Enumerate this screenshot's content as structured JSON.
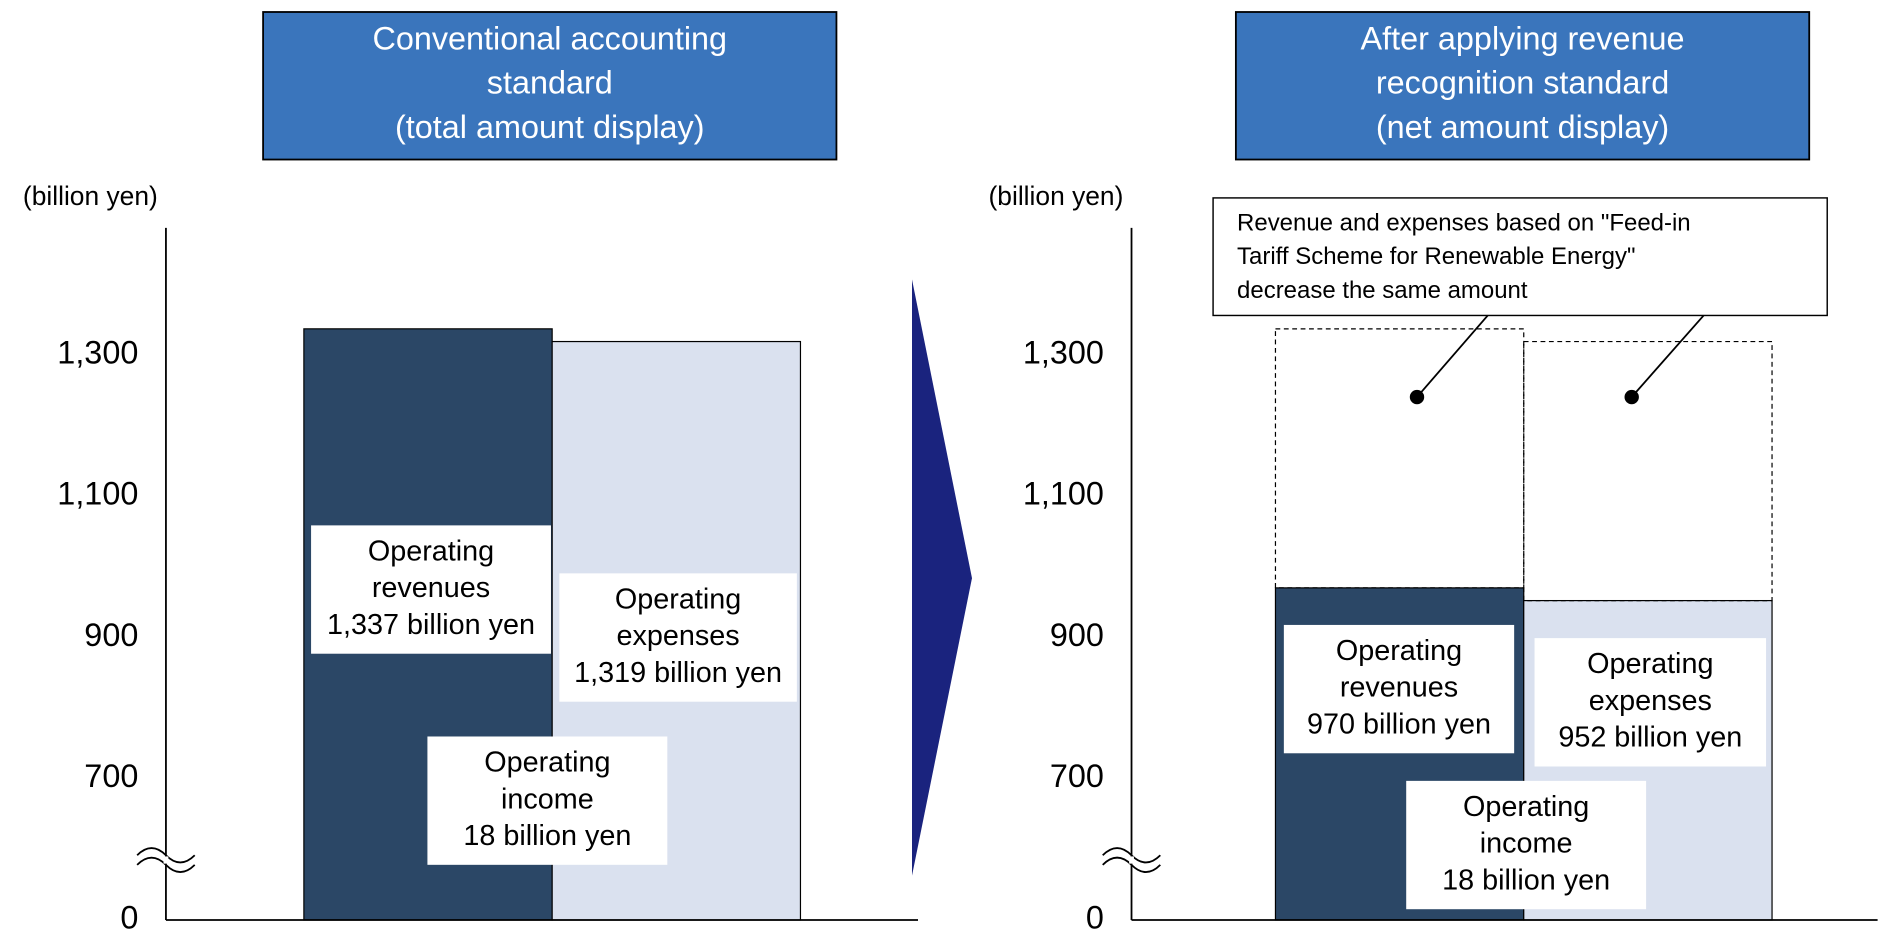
{
  "chart_data": [
    {
      "type": "bar",
      "title": [
        "Conventional accounting",
        "standard",
        "(total amount display)"
      ],
      "y_label": "(billion yen)",
      "ylim": [
        0,
        1480
      ],
      "yticks": [
        {
          "value": 0,
          "label": "0"
        },
        700,
        900,
        {
          "value": 1100,
          "label": "1,100"
        },
        {
          "value": 1300,
          "label": "1,300"
        }
      ],
      "axis_break": true,
      "values": [
        1337,
        1319
      ],
      "colors": [
        "#2b4766",
        "#dae1ef"
      ],
      "value_labels": [
        [
          "Operating",
          "revenues",
          "1,337 billion yen"
        ],
        [
          "Operating",
          "expenses",
          "1,319 billion yen"
        ]
      ],
      "annotations": [
        [
          "Operating",
          "income",
          "18 billion yen"
        ]
      ]
    },
    {
      "type": "bar",
      "title": [
        "After applying revenue",
        "recognition standard",
        "(net amount display)"
      ],
      "y_label": "(billion yen)",
      "ylim": [
        0,
        1480
      ],
      "yticks": [
        {
          "value": 0,
          "label": "0"
        },
        700,
        900,
        {
          "value": 1100,
          "label": "1,100"
        },
        {
          "value": 1300,
          "label": "1,300"
        }
      ],
      "axis_break": true,
      "values": [
        970,
        952
      ],
      "removed_values": [
        367,
        367
      ],
      "colors": [
        "#2b4766",
        "#dae1ef"
      ],
      "value_labels": [
        [
          "Operating",
          "revenues",
          "970 billion yen"
        ],
        [
          "Operating",
          "expenses",
          "952 billion yen"
        ]
      ],
      "annotations": [
        [
          "Operating",
          "income",
          "18 billion yen"
        ]
      ],
      "callout": [
        "Revenue and expenses based on \"Feed-in",
        "Tariff Scheme for Renewable Energy\"",
        "decrease the same amount"
      ]
    }
  ]
}
